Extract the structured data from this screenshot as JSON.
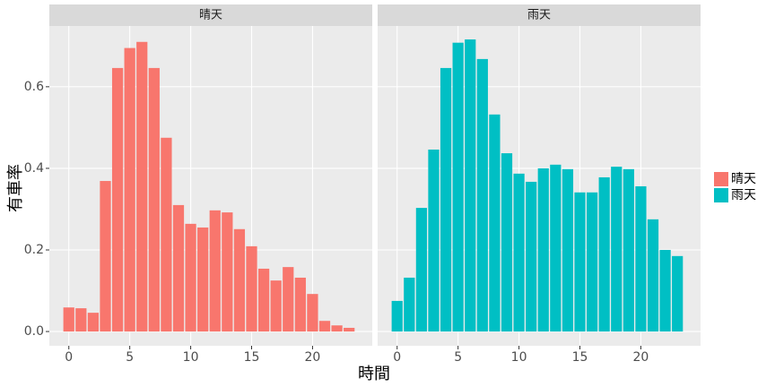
{
  "chart_data": {
    "type": "bar",
    "facet": true,
    "x_label": "時間",
    "y_label": "有車率",
    "x": [
      0,
      1,
      2,
      3,
      4,
      5,
      6,
      7,
      8,
      9,
      10,
      11,
      12,
      13,
      14,
      15,
      16,
      17,
      18,
      19,
      20,
      21,
      22,
      23
    ],
    "series": [
      {
        "name": "晴天",
        "color": "#f8766d",
        "values": [
          0.059,
          0.057,
          0.046,
          0.369,
          0.646,
          0.695,
          0.71,
          0.646,
          0.475,
          0.31,
          0.264,
          0.255,
          0.297,
          0.292,
          0.251,
          0.209,
          0.154,
          0.125,
          0.158,
          0.132,
          0.092,
          0.026,
          0.015,
          0.009
        ]
      },
      {
        "name": "雨天",
        "color": "#00bfc4",
        "values": [
          0.075,
          0.132,
          0.303,
          0.446,
          0.646,
          0.708,
          0.716,
          0.668,
          0.532,
          0.437,
          0.387,
          0.367,
          0.4,
          0.409,
          0.398,
          0.341,
          0.341,
          0.378,
          0.404,
          0.398,
          0.356,
          0.275,
          0.2,
          0.185
        ]
      }
    ],
    "xlim": [
      -1.6,
      24.9
    ],
    "xticks": [
      0,
      5,
      10,
      15,
      20
    ],
    "ylim": [
      -0.035,
      0.749
    ],
    "yticks": [
      {
        "value": 0,
        "label": "0.0"
      },
      0.2,
      0.4,
      0.6
    ],
    "grid": true,
    "legend": "right"
  }
}
